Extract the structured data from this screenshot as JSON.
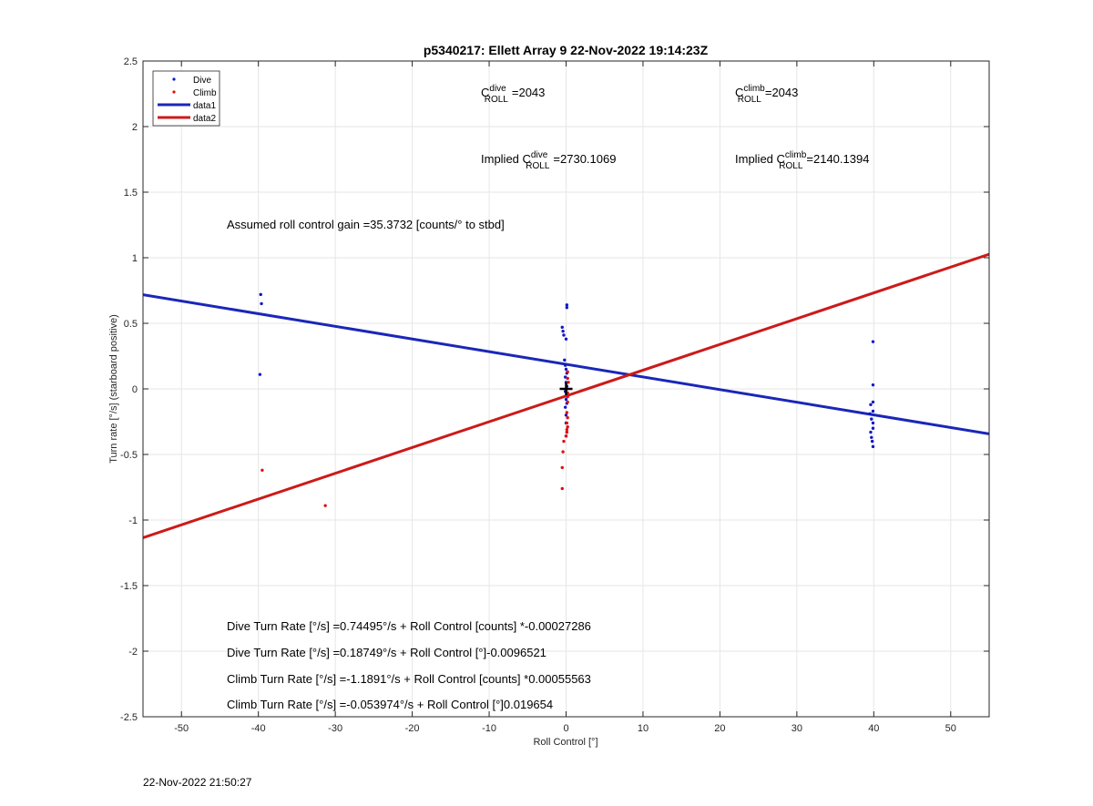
{
  "chart_data": {
    "type": "scatter",
    "title": "p5340217: Ellett Array 9 22-Nov-2022 19:14:23Z",
    "xlabel": "Roll Control [°]",
    "ylabel": "Turn rate [°/s] (starboard positive)",
    "xlim": [
      -55,
      55
    ],
    "ylim": [
      -2.5,
      2.5
    ],
    "xticks": [
      -50,
      -40,
      -30,
      -20,
      -10,
      0,
      10,
      20,
      30,
      40,
      50
    ],
    "yticks": [
      -2.5,
      -2,
      -1.5,
      -1,
      -0.5,
      0,
      0.5,
      1,
      1.5,
      2,
      2.5
    ],
    "grid": true,
    "legend_placement": "top-left",
    "legend": [
      {
        "label": "Dive",
        "kind": "marker",
        "color": "#1018c8"
      },
      {
        "label": "Climb",
        "kind": "marker",
        "color": "#e01010"
      },
      {
        "label": "data1",
        "kind": "line",
        "color": "#1a27b8"
      },
      {
        "label": "data2",
        "kind": "line",
        "color": "#cc1a1a"
      }
    ],
    "series": [
      {
        "name": "Dive",
        "kind": "scatter",
        "color": "#1018c8",
        "points": [
          [
            -39.7,
            0.72
          ],
          [
            -39.6,
            0.65
          ],
          [
            -39.8,
            0.11
          ],
          [
            -0.5,
            0.47
          ],
          [
            -0.4,
            0.44
          ],
          [
            -0.3,
            0.41
          ],
          [
            0.1,
            0.64
          ],
          [
            0.1,
            0.62
          ],
          [
            0.0,
            0.38
          ],
          [
            -0.2,
            0.22
          ],
          [
            -0.1,
            0.18
          ],
          [
            0.0,
            0.15
          ],
          [
            0.1,
            0.12
          ],
          [
            -0.1,
            0.09
          ],
          [
            0.0,
            0.05
          ],
          [
            0.1,
            0.02
          ],
          [
            -0.1,
            -0.02
          ],
          [
            0.0,
            -0.08
          ],
          [
            0.1,
            -0.11
          ],
          [
            -0.1,
            -0.14
          ],
          [
            0.0,
            -0.2
          ],
          [
            0.0,
            -0.26
          ],
          [
            0.1,
            -0.33
          ],
          [
            0.0,
            -0.36
          ],
          [
            39.9,
            0.36
          ],
          [
            39.9,
            0.03
          ],
          [
            39.6,
            -0.12
          ],
          [
            39.9,
            -0.1
          ],
          [
            39.5,
            -0.19
          ],
          [
            39.9,
            -0.17
          ],
          [
            39.7,
            -0.23
          ],
          [
            39.9,
            -0.26
          ],
          [
            39.9,
            -0.3
          ],
          [
            39.6,
            -0.33
          ],
          [
            39.7,
            -0.37
          ],
          [
            39.8,
            -0.4
          ],
          [
            39.9,
            -0.44
          ]
        ]
      },
      {
        "name": "Climb",
        "kind": "scatter",
        "color": "#e01010",
        "points": [
          [
            -39.5,
            -0.62
          ],
          [
            -31.3,
            -0.89
          ],
          [
            0.2,
            0.13
          ],
          [
            0.2,
            0.08
          ],
          [
            0.3,
            0.05
          ],
          [
            0.1,
            0.0
          ],
          [
            0.2,
            -0.03
          ],
          [
            0.2,
            -0.06
          ],
          [
            0.2,
            -0.1
          ],
          [
            0.1,
            -0.18
          ],
          [
            0.2,
            -0.22
          ],
          [
            0.1,
            -0.26
          ],
          [
            0.2,
            -0.29
          ],
          [
            0.1,
            -0.31
          ],
          [
            0.1,
            -0.33
          ],
          [
            0.0,
            -0.36
          ],
          [
            -0.3,
            -0.4
          ],
          [
            -0.4,
            -0.48
          ],
          [
            -0.5,
            -0.6
          ],
          [
            -0.5,
            -0.76
          ]
        ]
      },
      {
        "name": "data1",
        "kind": "line",
        "color": "#1a27b8",
        "points": [
          [
            -55,
            0.718
          ],
          [
            55,
            -0.343
          ]
        ]
      },
      {
        "name": "data2",
        "kind": "line",
        "color": "#cc1a1a",
        "points": [
          [
            -55,
            -1.135
          ],
          [
            55,
            1.027
          ]
        ]
      }
    ],
    "annotations": {
      "c_roll_dive": {
        "prefix": "C",
        "sup": "dive",
        "sub": "ROLL",
        "value": "=2043"
      },
      "c_roll_climb": {
        "prefix": "C",
        "sup": "climb",
        "sub": "ROLL",
        "value": "=2043"
      },
      "implied_dive": {
        "prefix": "Implied C",
        "sup": "dive",
        "sub": "ROLL",
        "value": "=2730.1069"
      },
      "implied_climb": {
        "prefix": "Implied C",
        "sup": "climb",
        "sub": "ROLL",
        "value": "=2140.1394"
      },
      "gain": "Assumed roll control gain =35.3732 [counts/° to stbd]",
      "eq_lines": [
        "Dive Turn Rate [°/s] =0.74495°/s + Roll Control [counts] *-0.00027286",
        "Dive Turn Rate [°/s] =0.18749°/s + Roll Control [°]-0.0096521",
        "Climb Turn Rate [°/s] =-1.1891°/s + Roll Control [counts] *0.00055563",
        "Climb Turn Rate [°/s] =-0.053974°/s + Roll Control [°]0.019654"
      ]
    },
    "marker_center": {
      "x": 0,
      "y": 0
    }
  },
  "footer": {
    "timestamp": "22-Nov-2022 21:50:27"
  }
}
